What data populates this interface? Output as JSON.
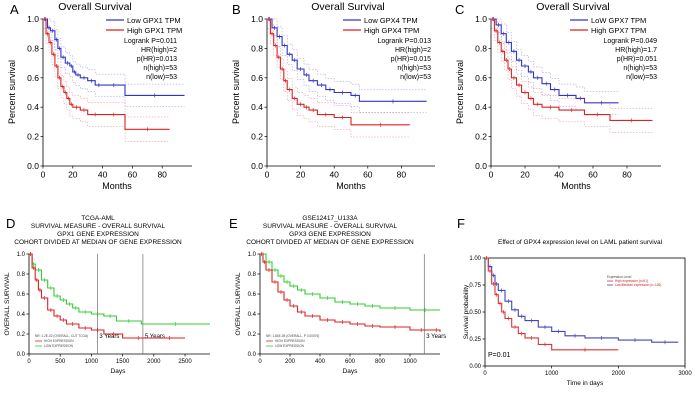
{
  "chart_data": [
    {
      "panel_label": "A",
      "type": "line",
      "title": "Overall Survival",
      "xlabel": "Months",
      "ylabel": "Percent survival",
      "xlim": [
        0,
        100
      ],
      "ylim": [
        0,
        1
      ],
      "xticks": [
        "0",
        "20",
        "40",
        "60",
        "80"
      ],
      "yticks": [
        "0.0",
        "0.2",
        "0.4",
        "0.6",
        "0.8",
        "1.0"
      ],
      "legend": [
        "Low GPX1 TPM",
        "High GPX1 TPM"
      ],
      "stats": [
        "Logrank P=0.011",
        "HR(high)=2",
        "p(HR)=0.013",
        "n(high)=53",
        "n(low)=53"
      ],
      "series": [
        {
          "name": "Low GPX1 TPM",
          "color": "#3333cc",
          "x": [
            0,
            3,
            5,
            8,
            10,
            12,
            15,
            18,
            20,
            22,
            25,
            30,
            35,
            40,
            55,
            95
          ],
          "y": [
            1.0,
            0.94,
            0.92,
            0.86,
            0.8,
            0.74,
            0.7,
            0.68,
            0.64,
            0.62,
            0.6,
            0.58,
            0.55,
            0.55,
            0.48,
            0.48
          ]
        },
        {
          "name": "High GPX1 TPM",
          "color": "#dd2222",
          "x": [
            0,
            2,
            4,
            6,
            8,
            10,
            12,
            14,
            16,
            18,
            20,
            25,
            30,
            40,
            55,
            85
          ],
          "y": [
            1.0,
            0.9,
            0.84,
            0.76,
            0.68,
            0.6,
            0.54,
            0.5,
            0.46,
            0.42,
            0.4,
            0.38,
            0.35,
            0.35,
            0.25,
            0.25
          ]
        }
      ]
    },
    {
      "panel_label": "B",
      "type": "line",
      "title": "Overall Survival",
      "xlabel": "Months",
      "ylabel": "Percent survival",
      "xlim": [
        0,
        100
      ],
      "ylim": [
        0,
        1
      ],
      "xticks": [
        "0",
        "20",
        "40",
        "60",
        "80"
      ],
      "yticks": [
        "0.0",
        "0.2",
        "0.4",
        "0.6",
        "0.8",
        "1.0"
      ],
      "legend": [
        "Low GPX4 TPM",
        "High GPX4 TPM"
      ],
      "stats": [
        "Logrank P=0.013",
        "HR(high)=2",
        "p(HR)=0.015",
        "n(high)=53",
        "n(low)=53"
      ],
      "series": [
        {
          "name": "Low GPX4 TPM",
          "color": "#3333cc",
          "x": [
            0,
            3,
            6,
            9,
            12,
            15,
            18,
            22,
            25,
            30,
            35,
            40,
            50,
            55,
            95
          ],
          "y": [
            1.0,
            0.94,
            0.88,
            0.82,
            0.76,
            0.72,
            0.66,
            0.62,
            0.58,
            0.55,
            0.52,
            0.5,
            0.48,
            0.44,
            0.44
          ]
        },
        {
          "name": "High GPX4 TPM",
          "color": "#dd2222",
          "x": [
            0,
            2,
            4,
            6,
            8,
            10,
            12,
            15,
            18,
            22,
            25,
            30,
            40,
            50,
            85
          ],
          "y": [
            1.0,
            0.9,
            0.82,
            0.74,
            0.66,
            0.58,
            0.52,
            0.46,
            0.42,
            0.4,
            0.38,
            0.35,
            0.33,
            0.28,
            0.28
          ]
        }
      ]
    },
    {
      "panel_label": "C",
      "type": "line",
      "title": "Overall Survival",
      "xlabel": "Months",
      "ylabel": "Percent survival",
      "xlim": [
        0,
        100
      ],
      "ylim": [
        0,
        1
      ],
      "xticks": [
        "0",
        "20",
        "40",
        "60",
        "80"
      ],
      "yticks": [
        "0.0",
        "0.2",
        "0.4",
        "0.6",
        "0.8",
        "1.0"
      ],
      "legend": [
        "LoW GPX7 TPM",
        "High GPX7 TPM"
      ],
      "stats": [
        "Logrank P=0.049",
        "HR(high)=1.7",
        "p(HR)=0.051",
        "n(high)=53",
        "n(low)=53"
      ],
      "series": [
        {
          "name": "LoW GPX7 TPM",
          "color": "#3333cc",
          "x": [
            0,
            3,
            6,
            9,
            12,
            15,
            18,
            22,
            25,
            30,
            35,
            40,
            50,
            55,
            75
          ],
          "y": [
            1.0,
            0.96,
            0.9,
            0.84,
            0.78,
            0.72,
            0.68,
            0.64,
            0.6,
            0.56,
            0.52,
            0.48,
            0.46,
            0.43,
            0.43
          ]
        },
        {
          "name": "High GPX7 TPM",
          "color": "#dd2222",
          "x": [
            0,
            2,
            4,
            6,
            8,
            10,
            12,
            15,
            18,
            22,
            25,
            30,
            40,
            55,
            70,
            95
          ],
          "y": [
            1.0,
            0.92,
            0.84,
            0.78,
            0.72,
            0.66,
            0.6,
            0.55,
            0.5,
            0.46,
            0.42,
            0.4,
            0.38,
            0.35,
            0.31,
            0.31
          ]
        }
      ]
    },
    {
      "panel_label": "D",
      "type": "line",
      "title_lines": [
        "TCGA-AML",
        "SURVIVAL MEASURE - OVERALL SURVIVAL",
        "GPX1 GENE EXPRESSION",
        "COHORT DIVIDED AT MEDIAN OF GENE EXPRESSION"
      ],
      "xlabel": "Days",
      "ylabel": "OVERALL SURVIVAL",
      "xlim": [
        0,
        2900
      ],
      "ylim": [
        0,
        1
      ],
      "xticks": [
        "0",
        "500",
        "1000",
        "1500",
        "2000",
        "2500"
      ],
      "yticks": [
        "0.0",
        "0.2",
        "0.4",
        "0.6",
        "0.8",
        "1.0"
      ],
      "legend": [
        "NR: 1.2E-02 (OVERALL, CUT TCGA)",
        "HIGH EXPRESSION",
        "LOW EXPRESSION"
      ],
      "vlines": [
        {
          "x": 1095,
          "label": "3 Years"
        },
        {
          "x": 1825,
          "label": "5 Years"
        }
      ],
      "series": [
        {
          "name": "LOW EXPRESSION",
          "color": "#33cc33",
          "x": [
            0,
            50,
            100,
            200,
            300,
            400,
            500,
            600,
            700,
            800,
            1000,
            1200,
            1400,
            1800,
            2900
          ],
          "y": [
            1.0,
            0.9,
            0.84,
            0.74,
            0.66,
            0.58,
            0.54,
            0.5,
            0.46,
            0.42,
            0.4,
            0.38,
            0.33,
            0.3,
            0.3
          ]
        },
        {
          "name": "HIGH EXPRESSION",
          "color": "#dd2222",
          "x": [
            0,
            50,
            100,
            150,
            200,
            300,
            400,
            500,
            600,
            800,
            1000,
            1200,
            1500,
            2000,
            2500
          ],
          "y": [
            1.0,
            0.86,
            0.74,
            0.64,
            0.56,
            0.44,
            0.38,
            0.34,
            0.3,
            0.26,
            0.24,
            0.2,
            0.16,
            0.16,
            0.16
          ]
        }
      ]
    },
    {
      "panel_label": "E",
      "type": "line",
      "title_lines": [
        "GSE12417_U133A",
        "SURVIVAL MEASURE - OVERALL SURVIVAL",
        "GPX3 GENE EXPRESSION",
        "COHORT DIVIDED AT MEDIAN OF GENE EXPRESSION"
      ],
      "xlabel": "Days",
      "ylabel": "OVERALL SURVIVAL",
      "xlim": [
        0,
        1200
      ],
      "ylim": [
        0,
        1
      ],
      "xticks": [
        "0",
        "200",
        "400",
        "600",
        "800",
        "1000"
      ],
      "yticks": [
        "0.0",
        "0.2",
        "0.4",
        "0.6",
        "0.8",
        "1.0"
      ],
      "legend": [
        "NR: 1.84E-05 (OVERALL, P 0.00076)",
        "HIGH EXPRESSION",
        "LOW EXPRESSION"
      ],
      "vlines": [
        {
          "x": 1095,
          "label": "3 Years"
        }
      ],
      "series": [
        {
          "name": "LOW EXPRESSION",
          "color": "#33cc33",
          "x": [
            0,
            40,
            80,
            120,
            160,
            200,
            250,
            300,
            400,
            500,
            600,
            700,
            800,
            1000,
            1200
          ],
          "y": [
            1.0,
            0.92,
            0.84,
            0.78,
            0.72,
            0.68,
            0.64,
            0.6,
            0.56,
            0.52,
            0.5,
            0.48,
            0.46,
            0.44,
            0.44
          ]
        },
        {
          "name": "HIGH EXPRESSION",
          "color": "#dd2222",
          "x": [
            0,
            20,
            40,
            80,
            120,
            160,
            200,
            250,
            300,
            400,
            500,
            600,
            700,
            800,
            1000,
            1150,
            1200
          ],
          "y": [
            1.0,
            0.92,
            0.84,
            0.72,
            0.62,
            0.54,
            0.48,
            0.42,
            0.38,
            0.34,
            0.32,
            0.3,
            0.28,
            0.27,
            0.24,
            0.24,
            0.22
          ]
        }
      ]
    },
    {
      "panel_label": "F",
      "type": "line",
      "title": "Effect of GPX4 expression level on LAML patient survival",
      "xlabel": "Time in days",
      "ylabel": "Survival probability",
      "xlim": [
        0,
        3000
      ],
      "ylim": [
        0,
        1
      ],
      "xticks": [
        "0",
        "1000",
        "2000",
        "3000"
      ],
      "yticks": [
        "0.00",
        "0.25",
        "0.50",
        "0.75",
        "1.00"
      ],
      "legend": [
        "Expression Level",
        "High expression (n=51)",
        "Low/Medium expression (n=105)"
      ],
      "annotation": "P=0.01",
      "series": [
        {
          "name": "Low/Medium expression (n=105)",
          "color": "#4444bb",
          "x": [
            0,
            50,
            100,
            150,
            200,
            300,
            400,
            500,
            600,
            800,
            1000,
            1200,
            1500,
            2000,
            2500,
            2900
          ],
          "y": [
            1.0,
            0.92,
            0.84,
            0.76,
            0.7,
            0.6,
            0.52,
            0.46,
            0.42,
            0.36,
            0.32,
            0.28,
            0.26,
            0.24,
            0.22,
            0.22
          ]
        },
        {
          "name": "High expression (n=51)",
          "color": "#dd3333",
          "x": [
            0,
            50,
            100,
            150,
            200,
            250,
            300,
            400,
            500,
            600,
            800,
            1000,
            2000
          ],
          "y": [
            1.0,
            0.88,
            0.76,
            0.66,
            0.58,
            0.5,
            0.44,
            0.36,
            0.3,
            0.26,
            0.2,
            0.15,
            0.15
          ]
        }
      ]
    }
  ]
}
